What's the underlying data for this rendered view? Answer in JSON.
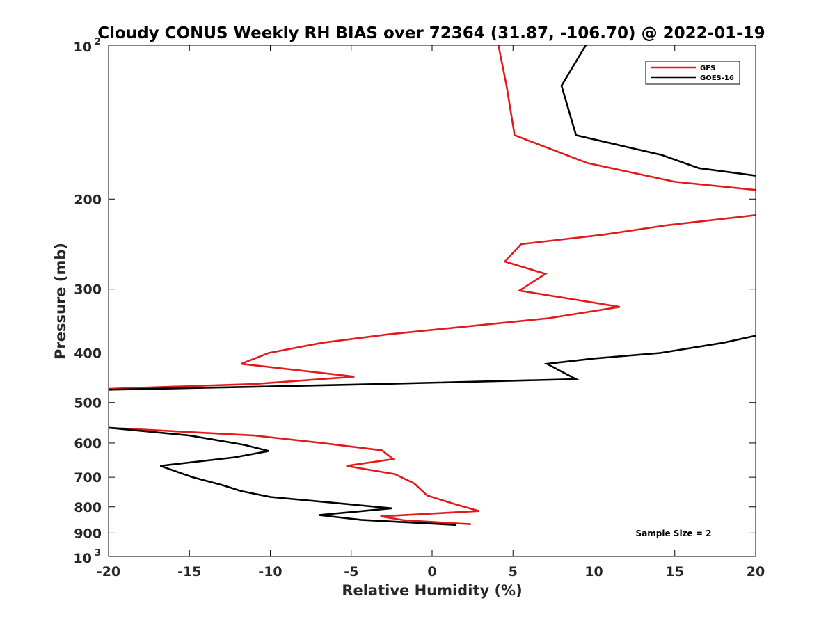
{
  "chart_data": {
    "type": "line",
    "title": "Cloudy CONUS Weekly RH BIAS over 72364 (31.87, -106.70) @ 2022-01-19",
    "xlabel": "Relative Humidity (%)",
    "ylabel": "Pressure (mb)",
    "xlim": [
      -20,
      20
    ],
    "ylim": [
      100,
      1000
    ],
    "y_scale": "log",
    "y_reversed": true,
    "grid": false,
    "legend_position": "top-right",
    "x_ticks": [
      "-20",
      "-15",
      "-10",
      "-5",
      "0",
      "5",
      "10",
      "15",
      "20"
    ],
    "y_ticks": [
      {
        "value": 100,
        "base": "10",
        "sup": "2"
      },
      {
        "value": 200,
        "label": "200"
      },
      {
        "value": 300,
        "label": "300"
      },
      {
        "value": 400,
        "label": "400"
      },
      {
        "value": 500,
        "label": "500"
      },
      {
        "value": 600,
        "label": "600"
      },
      {
        "value": 700,
        "label": "700"
      },
      {
        "value": 800,
        "label": "800"
      },
      {
        "value": 900,
        "label": "900"
      },
      {
        "value": 1000,
        "base": "10",
        "sup": "3"
      }
    ],
    "annotation": "Sample Size = 2",
    "series": [
      {
        "name": "GFS",
        "color": "#e31a1c",
        "points": [
          [
            4.1,
            100
          ],
          [
            4.6,
            120
          ],
          [
            5.1,
            150
          ],
          [
            9.6,
            170
          ],
          [
            15.0,
            185
          ],
          [
            20,
            192
          ],
          [
            null,
            null
          ],
          [
            20,
            215
          ],
          [
            14.5,
            225
          ],
          [
            10.5,
            235
          ],
          [
            5.5,
            245
          ],
          [
            4.5,
            265
          ],
          [
            7.0,
            280
          ],
          [
            5.4,
            302
          ],
          [
            11.6,
            325
          ],
          [
            7.2,
            342
          ],
          [
            -2.8,
            368
          ],
          [
            -6.8,
            382
          ],
          [
            -10.1,
            400
          ],
          [
            -11.8,
            420
          ],
          [
            -4.8,
            445
          ],
          [
            -11.0,
            460
          ],
          [
            -20,
            470
          ],
          [
            null,
            null
          ],
          [
            -20,
            560
          ],
          [
            -11.0,
            580
          ],
          [
            -6.8,
            600
          ],
          [
            -3.1,
            620
          ],
          [
            -2.4,
            645
          ],
          [
            -5.3,
            665
          ],
          [
            -2.3,
            690
          ],
          [
            -1.1,
            720
          ],
          [
            -0.3,
            760
          ],
          [
            1.4,
            790
          ],
          [
            2.9,
            815
          ],
          [
            -3.2,
            835
          ],
          [
            -1.7,
            850
          ],
          [
            2.4,
            865
          ]
        ]
      },
      {
        "name": "GOES-16",
        "color": "#000000",
        "points": [
          [
            9.5,
            100
          ],
          [
            8.0,
            120
          ],
          [
            8.9,
            150
          ],
          [
            14.2,
            164
          ],
          [
            16.5,
            174
          ],
          [
            20,
            180
          ],
          [
            null,
            null
          ],
          [
            20,
            370
          ],
          [
            18.0,
            382
          ],
          [
            14.1,
            400
          ],
          [
            10.0,
            410
          ],
          [
            7.1,
            420
          ],
          [
            8.9,
            450
          ],
          [
            -3.2,
            460
          ],
          [
            -10.0,
            465
          ],
          [
            -20,
            472
          ],
          [
            null,
            null
          ],
          [
            -20,
            560
          ],
          [
            -15.0,
            580
          ],
          [
            -11.6,
            605
          ],
          [
            -10.1,
            622
          ],
          [
            -12.2,
            640
          ],
          [
            -16.8,
            665
          ],
          [
            -14.8,
            700
          ],
          [
            -13.0,
            725
          ],
          [
            -11.8,
            745
          ],
          [
            -10.0,
            765
          ],
          [
            -6.2,
            785
          ],
          [
            -2.5,
            805
          ],
          [
            -7.0,
            830
          ],
          [
            -4.4,
            848
          ],
          [
            1.5,
            868
          ]
        ]
      }
    ]
  }
}
